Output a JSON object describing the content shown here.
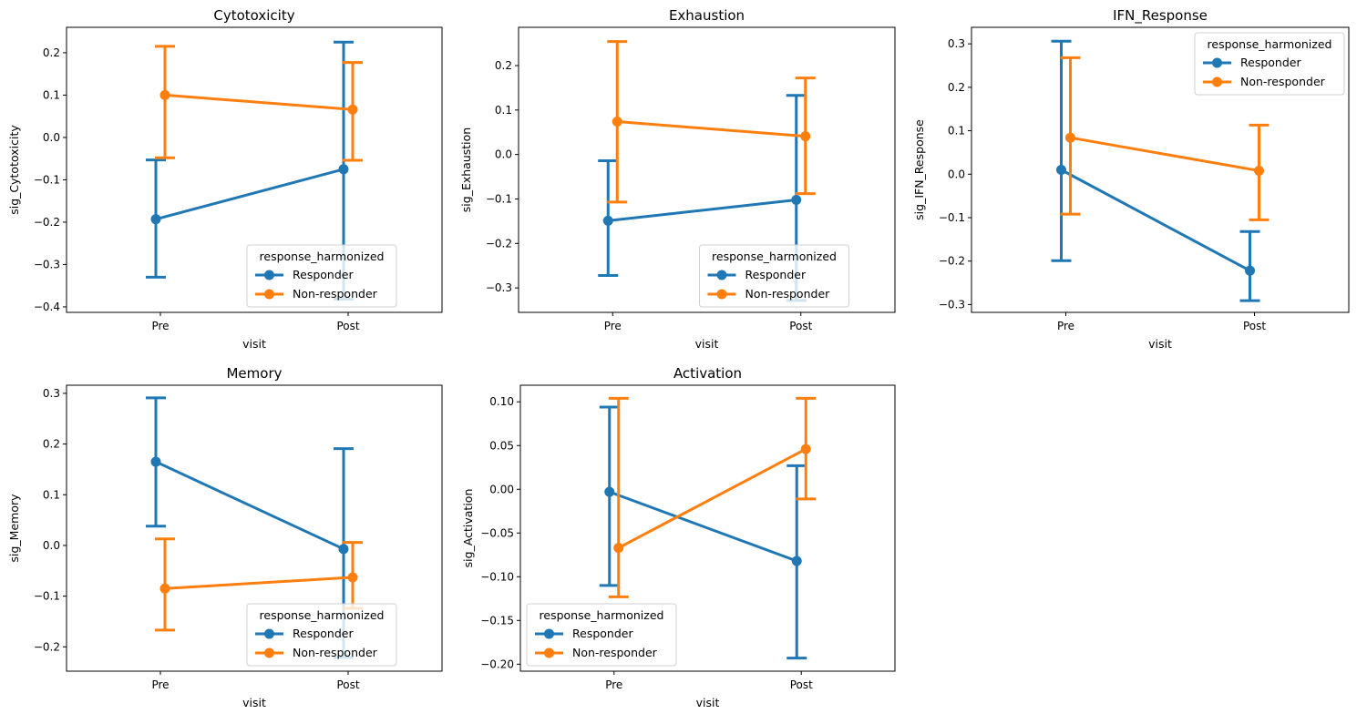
{
  "chart_data": [
    {
      "type": "line",
      "title": "Cytotoxicity",
      "xlabel": "visit",
      "ylabel": "sig_Cytotoxicity",
      "categories": [
        "Pre",
        "Post"
      ],
      "ylim": [
        -0.413,
        0.26
      ],
      "yticks": [
        0.2,
        0.1,
        0.0,
        -0.1,
        -0.2,
        -0.3,
        -0.4
      ],
      "ytick_labels": [
        "0.2",
        "0.1",
        "0.0",
        "−0.1",
        "−0.2",
        "−0.3",
        "−0.4"
      ],
      "legend": {
        "title": "response_harmonized",
        "placement": "lower center"
      },
      "series": [
        {
          "name": "Responder",
          "color": "#1f77b4",
          "values": [
            -0.193,
            -0.075
          ],
          "ci_low": [
            -0.33,
            -0.382
          ],
          "ci_high": [
            -0.053,
            0.225
          ]
        },
        {
          "name": "Non-responder",
          "color": "#ff7f0e",
          "values": [
            0.1,
            0.066
          ],
          "ci_low": [
            -0.048,
            -0.054
          ],
          "ci_high": [
            0.215,
            0.177
          ]
        }
      ]
    },
    {
      "type": "line",
      "title": "Exhaustion",
      "xlabel": "visit",
      "ylabel": "sig_Exhaustion",
      "categories": [
        "Pre",
        "Post"
      ],
      "ylim": [
        -0.355,
        0.286
      ],
      "yticks": [
        0.2,
        0.1,
        0.0,
        -0.1,
        -0.2,
        -0.3
      ],
      "ytick_labels": [
        "0.2",
        "0.1",
        "0.0",
        "−0.1",
        "−0.2",
        "−0.3"
      ],
      "legend": {
        "title": "response_harmonized",
        "placement": "lower center"
      },
      "series": [
        {
          "name": "Responder",
          "color": "#1f77b4",
          "values": [
            -0.149,
            -0.102
          ],
          "ci_low": [
            -0.272,
            -0.328
          ],
          "ci_high": [
            -0.014,
            0.133
          ]
        },
        {
          "name": "Non-responder",
          "color": "#ff7f0e",
          "values": [
            0.074,
            0.041
          ],
          "ci_low": [
            -0.107,
            -0.088
          ],
          "ci_high": [
            0.254,
            0.172
          ]
        }
      ]
    },
    {
      "type": "line",
      "title": "IFN_Response",
      "xlabel": "visit",
      "ylabel": "sig_IFN_Response",
      "categories": [
        "Pre",
        "Post"
      ],
      "ylim": [
        -0.318,
        0.338
      ],
      "yticks": [
        0.3,
        0.2,
        0.1,
        0.0,
        -0.1,
        -0.2,
        -0.3
      ],
      "ytick_labels": [
        "0.3",
        "0.2",
        "0.1",
        "0.0",
        "−0.1",
        "−0.2",
        "−0.3"
      ],
      "legend": {
        "title": "response_harmonized",
        "placement": "upper right"
      },
      "series": [
        {
          "name": "Responder",
          "color": "#1f77b4",
          "values": [
            0.01,
            -0.222
          ],
          "ci_low": [
            -0.199,
            -0.291
          ],
          "ci_high": [
            0.306,
            -0.132
          ]
        },
        {
          "name": "Non-responder",
          "color": "#ff7f0e",
          "values": [
            0.084,
            0.008
          ],
          "ci_low": [
            -0.092,
            -0.105
          ],
          "ci_high": [
            0.268,
            0.113
          ]
        }
      ]
    },
    {
      "type": "line",
      "title": "Memory",
      "xlabel": "visit",
      "ylabel": "sig_Memory",
      "categories": [
        "Pre",
        "Post"
      ],
      "ylim": [
        -0.248,
        0.316
      ],
      "yticks": [
        0.3,
        0.2,
        0.1,
        0.0,
        -0.1,
        -0.2
      ],
      "ytick_labels": [
        "0.3",
        "0.2",
        "0.1",
        "0.0",
        "−0.1",
        "−0.2"
      ],
      "legend": {
        "title": "response_harmonized",
        "placement": "lower center"
      },
      "series": [
        {
          "name": "Responder",
          "color": "#1f77b4",
          "values": [
            0.165,
            -0.007
          ],
          "ci_low": [
            0.038,
            -0.221
          ],
          "ci_high": [
            0.291,
            0.191
          ]
        },
        {
          "name": "Non-responder",
          "color": "#ff7f0e",
          "values": [
            -0.085,
            -0.063
          ],
          "ci_low": [
            -0.167,
            -0.124
          ],
          "ci_high": [
            0.013,
            0.006
          ]
        }
      ]
    },
    {
      "type": "line",
      "title": "Activation",
      "xlabel": "visit",
      "ylabel": "sig_Activation",
      "categories": [
        "Pre",
        "Post"
      ],
      "ylim": [
        -0.208,
        0.119
      ],
      "yticks": [
        0.1,
        0.05,
        0.0,
        -0.05,
        -0.1,
        -0.15,
        -0.2
      ],
      "ytick_labels": [
        "0.10",
        "0.05",
        "0.00",
        "−0.05",
        "−0.10",
        "−0.15",
        "−0.20"
      ],
      "legend": {
        "title": "response_harmonized",
        "placement": "lower left"
      },
      "series": [
        {
          "name": "Responder",
          "color": "#1f77b4",
          "values": [
            -0.003,
            -0.082
          ],
          "ci_low": [
            -0.11,
            -0.193
          ],
          "ci_high": [
            0.094,
            0.027
          ]
        },
        {
          "name": "Non-responder",
          "color": "#ff7f0e",
          "values": [
            -0.067,
            0.046
          ],
          "ci_low": [
            -0.123,
            -0.011
          ],
          "ci_high": [
            0.104,
            0.104
          ]
        }
      ]
    }
  ]
}
